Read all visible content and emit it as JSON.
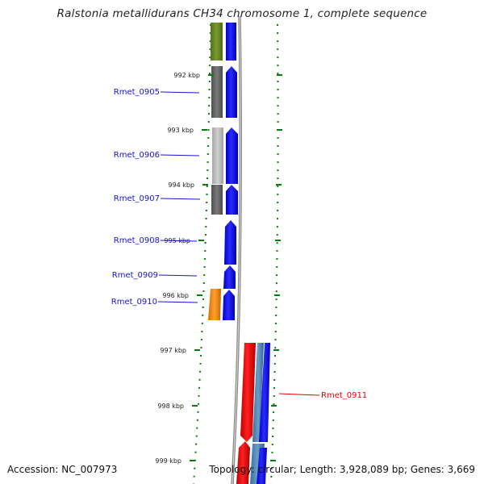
{
  "title": "Ralstonia metallidurans CH34 chromosome 1, complete sequence",
  "accession": "Accession: NC_007973",
  "topology": "Topology: circular; Length: 3,928,089 bp; Genes: 3,669",
  "colors": {
    "kbp_tick": "#0a7a0a",
    "label_blue": "#1515c8",
    "label_red": "#dd0000",
    "backbone": "#888888",
    "cds_blue": "#0000ff",
    "gene_red": "#ee0000",
    "olive": "#6b8e23",
    "dark_gray": "#666666",
    "light_gray": "#bcbcbc",
    "orange": "#ff8c00",
    "steel_blue": "#4682b4"
  },
  "ticks": [
    "992 kbp",
    "993 kbp",
    "994 kbp",
    "995 kbp",
    "996 kbp",
    "997 kbp",
    "998 kbp",
    "999 kbp"
  ],
  "genes": [
    {
      "label": "Rmet_0905",
      "color": "blue"
    },
    {
      "label": "Rmet_0906",
      "color": "blue"
    },
    {
      "label": "Rmet_0907",
      "color": "blue"
    },
    {
      "label": "Rmet_0908",
      "color": "blue"
    },
    {
      "label": "Rmet_0909",
      "color": "blue"
    },
    {
      "label": "Rmet_0910",
      "color": "blue"
    },
    {
      "label": "Rmet_0911",
      "color": "red"
    }
  ]
}
